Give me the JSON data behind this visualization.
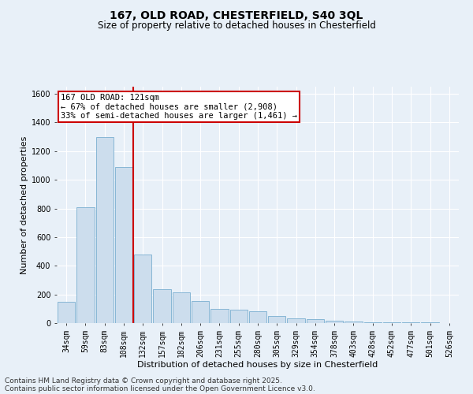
{
  "title": "167, OLD ROAD, CHESTERFIELD, S40 3QL",
  "subtitle": "Size of property relative to detached houses in Chesterfield",
  "xlabel": "Distribution of detached houses by size in Chesterfield",
  "ylabel": "Number of detached properties",
  "bar_color": "#ccdded",
  "bar_edge_color": "#7aaed0",
  "background_color": "#e8f0f8",
  "plot_bg_color": "#e8f0f8",
  "grid_color": "#ffffff",
  "vline_color": "#cc0000",
  "vline_x_index": 3.5,
  "annotation_text": "167 OLD ROAD: 121sqm\n← 67% of detached houses are smaller (2,908)\n33% of semi-detached houses are larger (1,461) →",
  "annotation_box_color": "#ffffff",
  "annotation_box_edge": "#cc0000",
  "bins": [
    "34sqm",
    "59sqm",
    "83sqm",
    "108sqm",
    "132sqm",
    "157sqm",
    "182sqm",
    "206sqm",
    "231sqm",
    "255sqm",
    "280sqm",
    "305sqm",
    "329sqm",
    "354sqm",
    "378sqm",
    "403sqm",
    "428sqm",
    "452sqm",
    "477sqm",
    "501sqm",
    "526sqm"
  ],
  "values": [
    150,
    810,
    1300,
    1090,
    480,
    235,
    215,
    155,
    100,
    95,
    80,
    50,
    35,
    25,
    15,
    10,
    5,
    5,
    5,
    3,
    2
  ],
  "ylim": [
    0,
    1650
  ],
  "yticks": [
    0,
    200,
    400,
    600,
    800,
    1000,
    1200,
    1400,
    1600
  ],
  "footnote_line1": "Contains HM Land Registry data © Crown copyright and database right 2025.",
  "footnote_line2": "Contains public sector information licensed under the Open Government Licence v3.0.",
  "title_fontsize": 10,
  "subtitle_fontsize": 8.5,
  "axis_label_fontsize": 8,
  "tick_fontsize": 7,
  "annotation_fontsize": 7.5,
  "footnote_fontsize": 6.5
}
